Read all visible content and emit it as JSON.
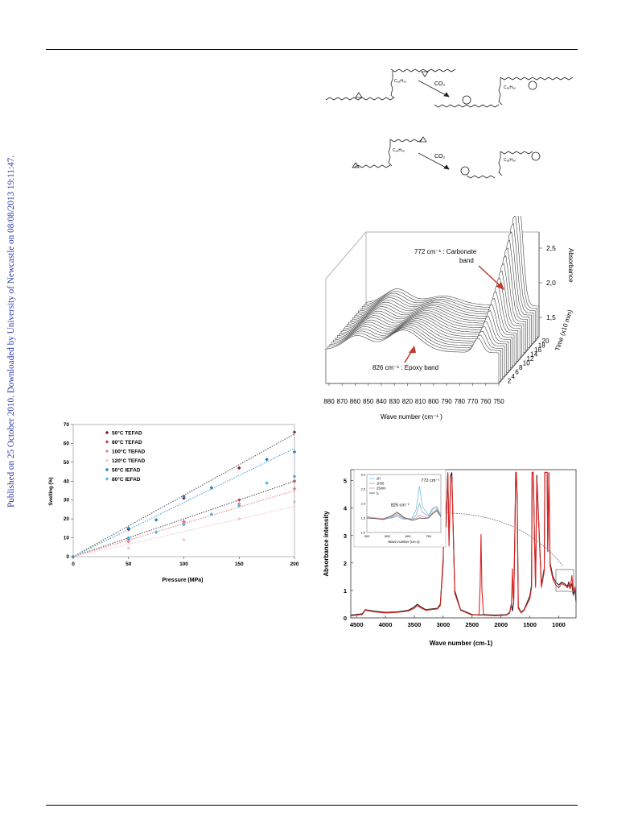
{
  "sidebar_note": "Published on 25 October 2010. Downloaded by University of Newcastle on 08/08/2013 19:11:47.",
  "scheme": {
    "reagent_top": "CO₂",
    "reagent_bottom": "CO₂",
    "chain_label": "C₁₈H₃₆"
  },
  "waterfall": {
    "annotation_carbonate": [
      "772 cm⁻¹  : Carbonate",
      "band"
    ],
    "annotation_epoxy": "826 cm⁻¹  : Epoxy band",
    "xlabel": "Wave number (cm⁻¹  )",
    "zlabel": "Absorbance",
    "tlabel": "Time (x10 min)",
    "x_ticks": [
      "880",
      "870",
      "860",
      "850",
      "840",
      "830",
      "820",
      "810",
      "800",
      "790",
      "780",
      "770",
      "760",
      "750"
    ],
    "z_ticks": [
      "1,5",
      "2,0",
      "2,5"
    ],
    "t_ticks": [
      "2",
      "4",
      "6",
      "8",
      "10",
      "12",
      "14",
      "16",
      "18",
      "20"
    ]
  },
  "chart_data": [
    {
      "type": "scatter",
      "xlabel": "Pressure (MPa)",
      "ylabel": "Swelling (%)",
      "xlim": [
        0,
        200
      ],
      "ylim": [
        0,
        70
      ],
      "x_ticks": [
        "0",
        "50",
        "100",
        "150",
        "200"
      ],
      "y_ticks": [
        "0",
        "10",
        "20",
        "30",
        "40",
        "50",
        "60",
        "70"
      ],
      "legend_position": "top-left",
      "series": [
        {
          "name": "50°C TEFAD",
          "color": "#7a1f2b",
          "x": [
            0,
            50,
            100,
            150,
            200
          ],
          "y": [
            0,
            14.5,
            31,
            47,
            66
          ]
        },
        {
          "name": "80°C TEFAD",
          "color": "#b8485a",
          "x": [
            0,
            50,
            100,
            150,
            200
          ],
          "y": [
            0,
            9.5,
            18.5,
            30,
            40
          ]
        },
        {
          "name": "100°C TEFAD",
          "color": "#e8888e",
          "x": [
            0,
            50,
            100,
            150,
            200
          ],
          "y": [
            0,
            8,
            18,
            28,
            36
          ]
        },
        {
          "name": "120°C TEFAD",
          "color": "#f5c9cf",
          "x": [
            0,
            50,
            100,
            150,
            200
          ],
          "y": [
            0,
            4.5,
            9,
            20,
            29
          ]
        },
        {
          "name": "50°C IEFAD",
          "color": "#2b7fb8",
          "x": [
            0,
            50,
            75,
            100,
            125,
            175,
            200
          ],
          "y": [
            0,
            15,
            19.5,
            32,
            36.5,
            51.5,
            55.5
          ]
        },
        {
          "name": "80°C IEFAD",
          "color": "#4fb4e8",
          "x": [
            0,
            50,
            75,
            100,
            125,
            150,
            175,
            200
          ],
          "y": [
            0,
            10,
            13,
            17,
            22.5,
            27,
            39,
            42.5
          ]
        }
      ],
      "fits": [
        {
          "color": "#5a5a5a",
          "slope": 0.325
        },
        {
          "color": "#5a5a5a",
          "slope": 0.2
        },
        {
          "color": "#e8888e",
          "slope": 0.175
        },
        {
          "color": "#f0c4ca",
          "slope": 0.133
        },
        {
          "color": "#4aa0cf",
          "slope": 0.287
        }
      ]
    },
    {
      "type": "line",
      "xlabel": "Wave number (cm-1)",
      "ylabel": "Absorbance intensity",
      "xlim": [
        4600,
        700
      ],
      "ylim": [
        0,
        5.4
      ],
      "x_ticks": [
        4500,
        4000,
        3500,
        3000,
        2500,
        2000,
        1500,
        1000
      ],
      "x_tick_labels": [
        "4500",
        "4000",
        "3500",
        "3000",
        "2500",
        "2000",
        "1500",
        "1000"
      ],
      "y_ticks": [
        0,
        1,
        2,
        3,
        4,
        5
      ],
      "y_tick_labels": [
        "0",
        "1",
        "2",
        "3",
        "4",
        "5"
      ],
      "series": [
        {
          "name": "black",
          "color": "#222222",
          "x": [
            4600,
            4400,
            4350,
            4200,
            4000,
            3800,
            3600,
            3500,
            3450,
            3400,
            3300,
            3100,
            3050,
            3000,
            2980,
            2950,
            2920,
            2900,
            2870,
            2850,
            2800,
            2700,
            2500,
            2360,
            2300,
            2100,
            1900,
            1850,
            1820,
            1800,
            1780,
            1760,
            1745,
            1735,
            1720,
            1700,
            1650,
            1600,
            1500,
            1470,
            1460,
            1440,
            1420,
            1400,
            1380,
            1300,
            1250,
            1240,
            1200,
            1190,
            1170,
            1150,
            1100,
            1050,
            1000,
            950,
            900,
            850,
            826,
            800,
            772,
            750,
            720,
            700
          ],
          "y": [
            0.1,
            0.15,
            0.3,
            0.25,
            0.2,
            0.22,
            0.28,
            0.4,
            0.5,
            0.42,
            0.3,
            0.35,
            0.5,
            2.2,
            5.3,
            3.5,
            5.3,
            2.8,
            5.2,
            5.3,
            1.0,
            0.3,
            0.12,
            0.1,
            0.12,
            0.1,
            0.12,
            0.2,
            0.5,
            0.25,
            0.6,
            3.0,
            5.3,
            5.3,
            4.5,
            0.4,
            0.2,
            0.3,
            0.8,
            1.2,
            5.3,
            5.3,
            3.0,
            1.2,
            5.2,
            1.2,
            1.8,
            5.3,
            5.3,
            2.5,
            5.3,
            2.0,
            1.5,
            1.3,
            1.2,
            1.3,
            1.25,
            1.15,
            1.3,
            1.1,
            1.25,
            0.85,
            1.0,
            0.6
          ]
        },
        {
          "name": "red",
          "color": "#e02222",
          "x": [
            4600,
            4400,
            4350,
            4200,
            4000,
            3800,
            3600,
            3500,
            3450,
            3400,
            3300,
            3100,
            3050,
            3000,
            2980,
            2950,
            2920,
            2900,
            2870,
            2850,
            2800,
            2700,
            2500,
            2380,
            2360,
            2345,
            2330,
            2300,
            2100,
            1900,
            1850,
            1820,
            1800,
            1790,
            1780,
            1760,
            1745,
            1735,
            1720,
            1700,
            1650,
            1600,
            1500,
            1470,
            1460,
            1440,
            1420,
            1400,
            1380,
            1300,
            1250,
            1240,
            1200,
            1190,
            1170,
            1150,
            1100,
            1050,
            1000,
            950,
            900,
            850,
            826,
            800,
            772,
            750,
            720,
            700
          ],
          "y": [
            0.08,
            0.12,
            0.28,
            0.22,
            0.18,
            0.2,
            0.25,
            0.35,
            0.45,
            0.38,
            0.28,
            0.33,
            0.45,
            2.0,
            5.3,
            3.3,
            5.3,
            2.6,
            5.1,
            5.2,
            0.9,
            0.28,
            0.1,
            0.12,
            1.2,
            3.05,
            1.0,
            0.1,
            0.08,
            0.1,
            0.18,
            0.45,
            1.8,
            0.8,
            0.55,
            2.9,
            5.3,
            5.3,
            4.4,
            0.35,
            0.18,
            0.28,
            0.7,
            1.1,
            5.3,
            5.3,
            2.9,
            1.1,
            5.1,
            1.1,
            1.7,
            5.3,
            5.3,
            2.4,
            5.3,
            1.9,
            1.4,
            1.2,
            1.1,
            1.25,
            1.2,
            1.1,
            1.2,
            1.05,
            1.55,
            0.95,
            1.1,
            0.7
          ]
        }
      ],
      "inset": {
        "xlim": [
          900,
          720
        ],
        "ylim": [
          1.0,
          3.0
        ],
        "x_ticks": [
          "900",
          "850",
          "800",
          "750"
        ],
        "y_ticks": [
          "1,0",
          "1,5",
          "2,0",
          "2,5",
          "3,0"
        ],
        "xlabel": "Wave number (cm-1)",
        "annotations": [
          "772 cm⁻¹",
          "826 cm⁻¹"
        ],
        "legend": [
          "2h",
          "1h30",
          "25min",
          "t₀"
        ],
        "series": [
          {
            "name": "2h",
            "color": "#7ec8e3",
            "x": [
              900,
              880,
              860,
              840,
              826,
              810,
              790,
              780,
              772,
              765,
              750,
              740,
              730,
              720
            ],
            "y": [
              1.55,
              1.5,
              1.45,
              1.5,
              1.55,
              1.45,
              1.5,
              1.8,
              2.6,
              1.9,
              1.6,
              1.85,
              1.9,
              1.6
            ]
          },
          {
            "name": "1h30",
            "color": "#9db0c8",
            "x": [
              900,
              880,
              860,
              840,
              826,
              810,
              790,
              780,
              772,
              765,
              750,
              740,
              730,
              720
            ],
            "y": [
              1.55,
              1.5,
              1.45,
              1.52,
              1.6,
              1.48,
              1.45,
              1.6,
              2.0,
              1.7,
              1.55,
              1.8,
              1.85,
              1.55
            ]
          },
          {
            "name": "25min",
            "color": "#e39aa5",
            "x": [
              900,
              880,
              860,
              840,
              826,
              810,
              790,
              780,
              772,
              765,
              750,
              740,
              730,
              720
            ],
            "y": [
              1.55,
              1.5,
              1.48,
              1.55,
              1.65,
              1.5,
              1.45,
              1.5,
              1.6,
              1.55,
              1.5,
              1.7,
              1.8,
              1.55
            ]
          },
          {
            "name": "t0",
            "color": "#555555",
            "x": [
              900,
              880,
              860,
              840,
              826,
              810,
              790,
              780,
              772,
              765,
              750,
              740,
              730,
              720
            ],
            "y": [
              1.5,
              1.48,
              1.45,
              1.58,
              1.7,
              1.52,
              1.42,
              1.45,
              1.5,
              1.48,
              1.5,
              1.65,
              1.75,
              1.55
            ]
          }
        ]
      }
    }
  ]
}
